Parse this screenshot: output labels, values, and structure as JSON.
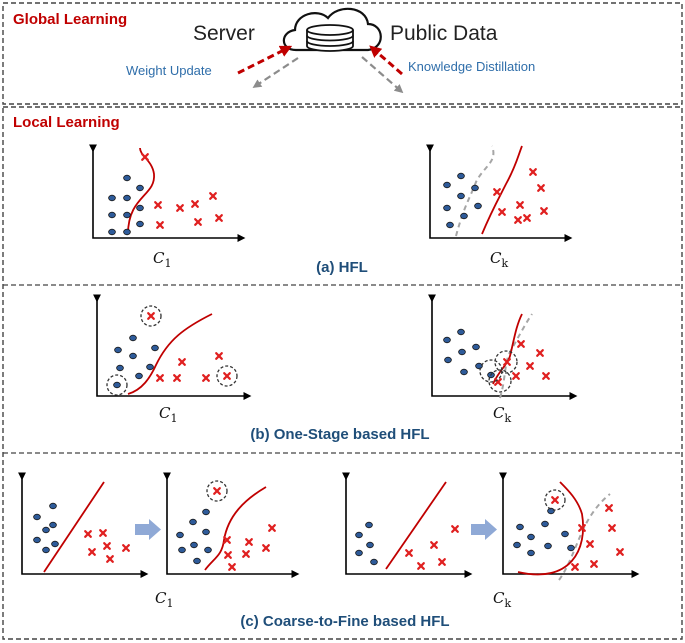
{
  "global": {
    "title": "Global Learning",
    "server_label": "Server",
    "public_data_label": "Public Data",
    "weight_update_label": "Weight Update",
    "knowledge_distillation_label": "Knowledge Distillation"
  },
  "local": {
    "title": "Local Learning"
  },
  "clients": {
    "first": {
      "symbol": "C",
      "sub": "1"
    },
    "last": {
      "symbol": "C",
      "sub": "k"
    }
  },
  "captions": {
    "hfl": "(a) HFL",
    "one_stage": "(b) One-Stage based HFL",
    "coarse_to_fine": "(c) Coarse-to-Fine based HFL"
  },
  "colors": {
    "section_title": "#c00000",
    "caption": "#1f4e79",
    "arrow_label": "#2f6eaa",
    "blue_point": "#2e5b9a",
    "red_point": "#e02020",
    "boundary": "#c00000",
    "old_boundary": "#a6a6a6",
    "transition_arrow": "#8fa9d6"
  }
}
